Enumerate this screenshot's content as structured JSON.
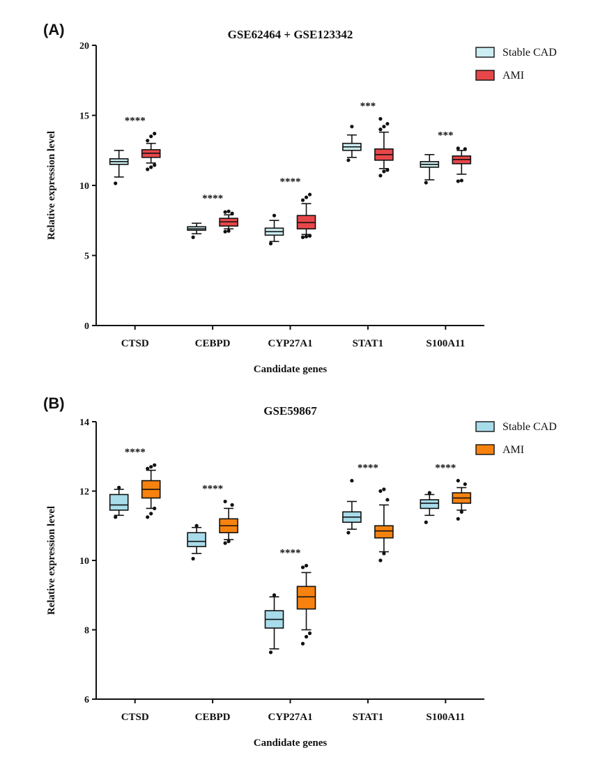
{
  "chart_data": [
    {
      "panel_label": "(A)",
      "type": "box",
      "title": "GSE62464 + GSE123342",
      "xlabel": "Candidate genes",
      "ylabel": "Relative expression level",
      "ylim": [
        0,
        20
      ],
      "yticks": [
        "0",
        "5",
        "10",
        "15",
        "20"
      ],
      "categories": [
        "CTSD",
        "CEBPD",
        "CYP27A1",
        "STAT1",
        "S100A11"
      ],
      "significance": [
        "****",
        "****",
        "****",
        "***",
        "***"
      ],
      "legend_position": "top-right",
      "series": [
        {
          "name": "Stable CAD",
          "color": "#cdeef2",
          "boxes": [
            {
              "whisker_low": 10.6,
              "q1": 11.5,
              "median": 11.7,
              "q3": 11.9,
              "whisker_high": 12.5,
              "outliers": [
                10.15
              ]
            },
            {
              "whisker_low": 6.55,
              "q1": 6.8,
              "median": 6.9,
              "q3": 7.05,
              "whisker_high": 7.3,
              "outliers": [
                6.3
              ]
            },
            {
              "whisker_low": 6.0,
              "q1": 6.45,
              "median": 6.7,
              "q3": 6.95,
              "whisker_high": 7.5,
              "outliers": [
                5.85,
                7.85
              ]
            },
            {
              "whisker_low": 12.0,
              "q1": 12.5,
              "median": 12.75,
              "q3": 13.0,
              "whisker_high": 13.6,
              "outliers": [
                11.8,
                14.2
              ]
            },
            {
              "whisker_low": 10.4,
              "q1": 11.3,
              "median": 11.5,
              "q3": 11.7,
              "whisker_high": 12.2,
              "outliers": [
                10.2
              ]
            }
          ]
        },
        {
          "name": "AMI",
          "color": "#e8474a",
          "boxes": [
            {
              "whisker_low": 11.6,
              "q1": 12.0,
              "median": 12.3,
              "q3": 12.55,
              "whisker_high": 13.0,
              "outliers": [
                11.15,
                11.3,
                11.45,
                13.2,
                13.5,
                13.7
              ]
            },
            {
              "whisker_low": 6.9,
              "q1": 7.1,
              "median": 7.4,
              "q3": 7.65,
              "whisker_high": 7.9,
              "outliers": [
                6.7,
                6.75,
                8.0,
                8.1,
                8.15
              ]
            },
            {
              "whisker_low": 6.5,
              "q1": 6.9,
              "median": 7.35,
              "q3": 7.85,
              "whisker_high": 8.7,
              "outliers": [
                6.3,
                6.35,
                6.4,
                8.95,
                9.15,
                9.35
              ]
            },
            {
              "whisker_low": 11.2,
              "q1": 11.8,
              "median": 12.2,
              "q3": 12.6,
              "whisker_high": 13.8,
              "outliers": [
                10.7,
                11.0,
                11.1,
                14.0,
                14.2,
                14.4,
                14.75
              ]
            },
            {
              "whisker_low": 10.8,
              "q1": 11.55,
              "median": 11.85,
              "q3": 12.1,
              "whisker_high": 12.5,
              "outliers": [
                10.3,
                10.35,
                12.6,
                12.65
              ]
            }
          ]
        }
      ]
    },
    {
      "panel_label": "(B)",
      "type": "box",
      "title": "GSE59867",
      "xlabel": "Candidate genes",
      "ylabel": "Relative expression level",
      "ylim": [
        6,
        14
      ],
      "yticks": [
        "6",
        "8",
        "10",
        "12",
        "14"
      ],
      "categories": [
        "CTSD",
        "CEBPD",
        "CYP27A1",
        "STAT1",
        "S100A11"
      ],
      "significance": [
        "****",
        "****",
        "****",
        "****",
        "****"
      ],
      "legend_position": "top-right",
      "series": [
        {
          "name": "Stable CAD",
          "color": "#a8dcea",
          "boxes": [
            {
              "whisker_low": 11.3,
              "q1": 11.45,
              "median": 11.6,
              "q3": 11.9,
              "whisker_high": 12.05,
              "outliers": [
                11.25,
                12.1
              ]
            },
            {
              "whisker_low": 10.2,
              "q1": 10.4,
              "median": 10.55,
              "q3": 10.8,
              "whisker_high": 10.95,
              "outliers": [
                10.05,
                11.0
              ]
            },
            {
              "whisker_low": 7.45,
              "q1": 8.05,
              "median": 8.3,
              "q3": 8.55,
              "whisker_high": 8.95,
              "outliers": [
                7.35,
                9.0
              ]
            },
            {
              "whisker_low": 10.9,
              "q1": 11.1,
              "median": 11.25,
              "q3": 11.4,
              "whisker_high": 11.7,
              "outliers": [
                10.8,
                12.3
              ]
            },
            {
              "whisker_low": 11.3,
              "q1": 11.5,
              "median": 11.65,
              "q3": 11.75,
              "whisker_high": 11.9,
              "outliers": [
                11.1,
                11.95
              ]
            }
          ]
        },
        {
          "name": "AMI",
          "color": "#f7820f",
          "boxes": [
            {
              "whisker_low": 11.5,
              "q1": 11.8,
              "median": 12.05,
              "q3": 12.3,
              "whisker_high": 12.6,
              "outliers": [
                11.25,
                11.35,
                11.5,
                12.65,
                12.7,
                12.75
              ]
            },
            {
              "whisker_low": 10.6,
              "q1": 10.8,
              "median": 11.0,
              "q3": 11.2,
              "whisker_high": 11.5,
              "outliers": [
                10.5,
                10.55,
                11.6,
                11.7
              ]
            },
            {
              "whisker_low": 8.0,
              "q1": 8.6,
              "median": 8.95,
              "q3": 9.25,
              "whisker_high": 9.65,
              "outliers": [
                7.6,
                7.8,
                7.9,
                9.8,
                9.85
              ]
            },
            {
              "whisker_low": 10.25,
              "q1": 10.65,
              "median": 10.85,
              "q3": 11.0,
              "whisker_high": 11.6,
              "outliers": [
                10.0,
                10.2,
                11.75,
                12.0,
                12.05
              ]
            },
            {
              "whisker_low": 11.45,
              "q1": 11.65,
              "median": 11.8,
              "q3": 11.95,
              "whisker_high": 12.1,
              "outliers": [
                11.2,
                11.4,
                12.2,
                12.3
              ]
            }
          ]
        }
      ]
    }
  ]
}
